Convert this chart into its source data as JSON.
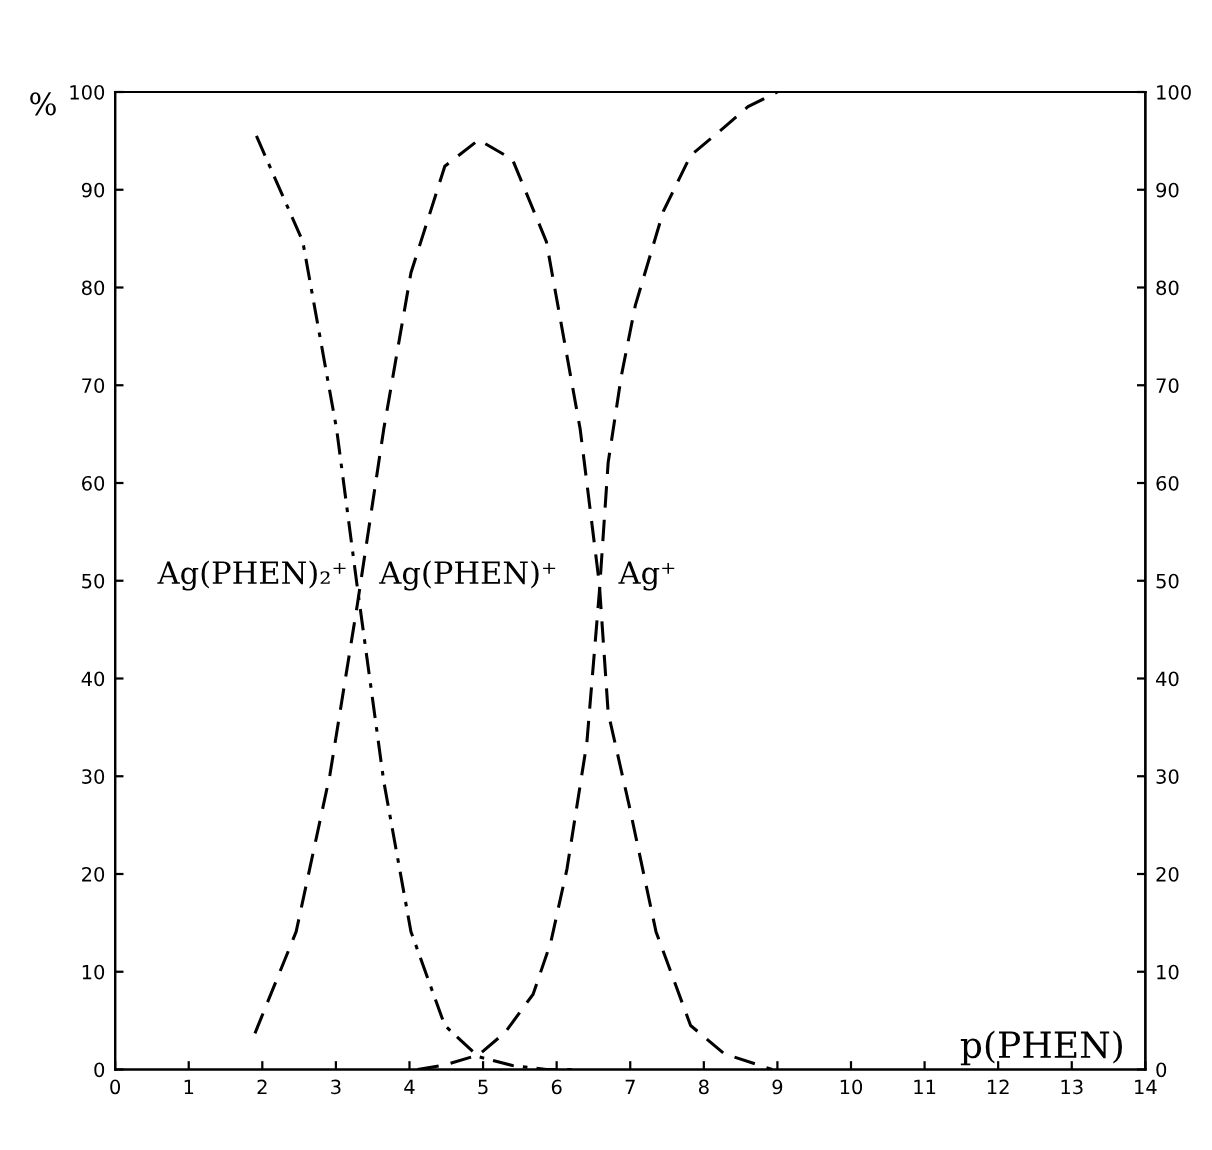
{
  "chart_data": {
    "type": "line",
    "xlabel": "p(PHEN)",
    "ylabel": "%",
    "xlim": [
      0,
      14
    ],
    "xticks": [
      0,
      1,
      2,
      3,
      4,
      5,
      6,
      7,
      8,
      9,
      10,
      11,
      12,
      13,
      14
    ],
    "ylim": [
      0,
      100
    ],
    "yticks": [
      0,
      10,
      20,
      30,
      40,
      50,
      60,
      70,
      80,
      90,
      100
    ],
    "y2lim": [
      0,
      100
    ],
    "y2ticks": [
      0,
      10,
      20,
      30,
      40,
      50,
      60,
      70,
      80,
      90,
      100
    ],
    "grid": false,
    "legend": false,
    "marker": "none",
    "series": [
      {
        "name": "Ag(PHEN)₂⁺",
        "color": "#000000",
        "line_style": "dashdot",
        "x": [
          1.92,
          2.55,
          3.01,
          3.29,
          3.65,
          4.02,
          4.48,
          4.94,
          5.4,
          5.86,
          6.3
        ],
        "values": [
          95.5,
          84.7,
          65.5,
          49.4,
          29.5,
          14.1,
          4.5,
          1.3,
          0.4,
          0,
          0
        ]
      },
      {
        "name": "Ag(PHEN)⁺",
        "color": "#000000",
        "line_style": "dashed",
        "x": [
          1.9,
          2.46,
          2.92,
          3.29,
          3.65,
          4.02,
          4.48,
          4.94,
          5.4,
          5.86,
          6.32,
          6.58,
          6.7,
          6.98,
          7.35,
          7.82,
          8.28,
          8.93
        ],
        "values": [
          3.7,
          14.1,
          30.2,
          47.5,
          65.5,
          81.5,
          92.4,
          95.1,
          93.1,
          84.7,
          65.5,
          49.7,
          36.5,
          27.2,
          14.1,
          4.5,
          1.6,
          0
        ]
      },
      {
        "name": "Ag⁺",
        "color": "#000000",
        "line_style": "dashed",
        "x": [
          4.11,
          4.5,
          4.94,
          5.3,
          5.68,
          5.92,
          6.14,
          6.41,
          6.58,
          6.7,
          6.88,
          7.07,
          7.45,
          7.82,
          8.28,
          8.6,
          9.0
        ],
        "values": [
          0,
          0.5,
          1.5,
          3.8,
          7.7,
          13,
          20.5,
          33.4,
          48.8,
          62.1,
          71,
          78.2,
          87.8,
          93.5,
          96.4,
          98.5,
          100
        ]
      }
    ]
  }
}
